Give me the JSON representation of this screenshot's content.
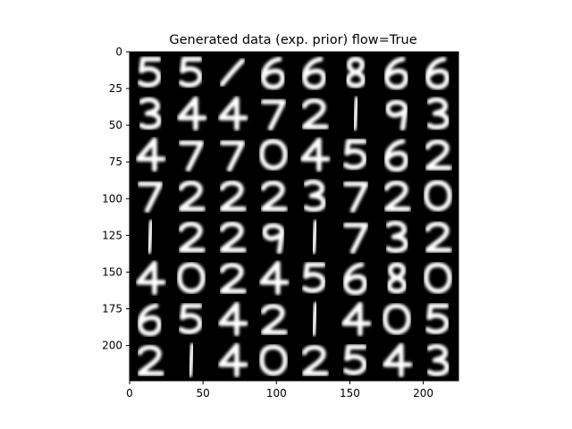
{
  "chart_data": {
    "type": "heatmap",
    "title": "Generated data (exp. prior) flow=True",
    "xlabel": "",
    "ylabel": "",
    "xlim": [
      0,
      224
    ],
    "ylim": [
      224,
      0
    ],
    "x_ticks": [
      0,
      50,
      100,
      150,
      200
    ],
    "y_ticks": [
      0,
      25,
      50,
      75,
      100,
      125,
      150,
      175,
      200
    ],
    "grid": false,
    "colormap": "gray",
    "background_color": "#000000",
    "image_grid": {
      "rows": 8,
      "cols": 8,
      "cell_size": 28,
      "digits": [
        [
          "5",
          "5",
          "/",
          "6",
          "6",
          "8",
          "6",
          "6"
        ],
        [
          "3",
          "4",
          "4",
          "7",
          "2",
          "1",
          "9",
          "3"
        ],
        [
          "4",
          "7",
          "7",
          "0",
          "4",
          "5",
          "6",
          "2"
        ],
        [
          "7",
          "2",
          "2",
          "2",
          "3",
          "7",
          "2",
          "0"
        ],
        [
          "1",
          "2",
          "2",
          "9",
          "1",
          "7",
          "3",
          "2"
        ],
        [
          "4",
          "0",
          "2",
          "4",
          "5",
          "6",
          "8",
          "0"
        ],
        [
          "6",
          "5",
          "4",
          "2",
          "1",
          "4",
          "0",
          "5"
        ],
        [
          "2",
          "1",
          "4",
          "0",
          "2",
          "5",
          "4",
          "3"
        ]
      ]
    }
  }
}
